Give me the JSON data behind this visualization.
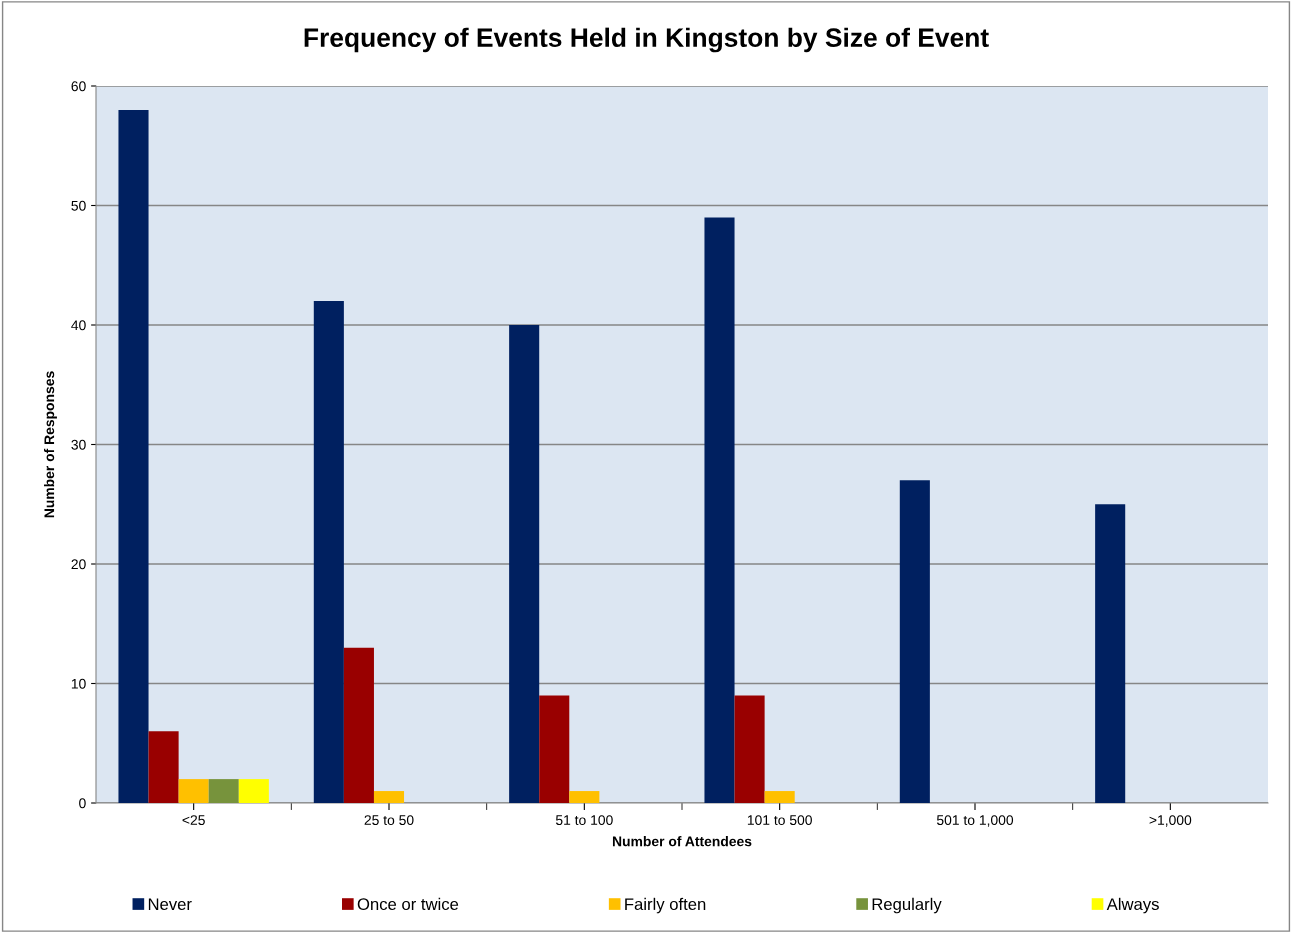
{
  "chart_data": {
    "type": "bar",
    "title": "Frequency of Events Held in Kingston by Size of Event",
    "xlabel": "Number of Attendees",
    "ylabel": "Number of Responses",
    "categories": [
      "<25",
      "25 to 50",
      "51 to 100",
      "101 to 500",
      "501 to 1,000",
      ">1,000"
    ],
    "series": [
      {
        "name": "Never",
        "color": "#002060",
        "values": [
          58,
          42,
          40,
          49,
          27,
          25
        ]
      },
      {
        "name": "Once or twice",
        "color": "#990000",
        "values": [
          6,
          13,
          9,
          9,
          0,
          0
        ]
      },
      {
        "name": "Fairly often",
        "color": "#ffc000",
        "values": [
          2,
          1,
          1,
          1,
          0,
          0
        ]
      },
      {
        "name": "Regularly",
        "color": "#77933c",
        "values": [
          2,
          0,
          0,
          0,
          0,
          0
        ]
      },
      {
        "name": "Always",
        "color": "#ffff00",
        "values": [
          2,
          0,
          0,
          0,
          0,
          0
        ]
      }
    ],
    "ylim": [
      0,
      60
    ],
    "yticks": [
      0,
      10,
      20,
      30,
      40,
      50,
      60
    ],
    "grid": "y",
    "legend": "bottom"
  }
}
